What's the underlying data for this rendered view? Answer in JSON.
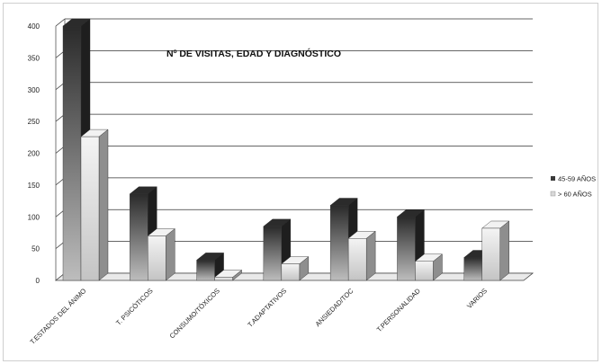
{
  "chart_data": {
    "type": "bar",
    "title": "Nº DE VISITAS, EDAD Y DIAGNÓSTICO",
    "categories": [
      "T.ESTADOS DEL ÁNIMO",
      "T. PSICÓTICOS",
      "CONSUMO/TÓXICOS",
      "T.ADAPTATIVOS",
      "ANSIEDAD/TOC",
      "T.PERSONALIDAD",
      "VARIOS"
    ],
    "series": [
      {
        "name": "45-59 AÑOS",
        "values": [
          400,
          136,
          32,
          85,
          118,
          100,
          36
        ],
        "color": "#3a3a3a"
      },
      {
        "name": "> 60 AÑOS",
        "values": [
          226,
          70,
          5,
          26,
          66,
          30,
          82
        ],
        "color": "#d8d8d8"
      }
    ],
    "y_ticks": [
      "0",
      "50",
      "100",
      "150",
      "200",
      "250",
      "300",
      "350",
      "400"
    ],
    "ylim": [
      0,
      400
    ],
    "grid": true,
    "legend_position": "right",
    "xlabel": "",
    "ylabel": ""
  }
}
